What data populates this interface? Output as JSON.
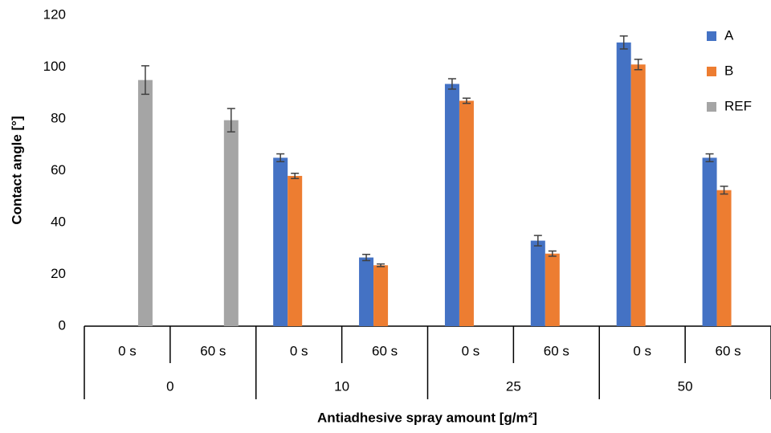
{
  "chart_data": {
    "type": "bar",
    "y_label": "Contact angle [°]",
    "x_label": "Antiadhesive spray amount [g/m²]",
    "categories": [
      "0 s",
      "60 s",
      "0 s",
      "60 s",
      "0 s",
      "60 s",
      "0 s",
      "60 s"
    ],
    "group_labels": [
      "0",
      "10",
      "25",
      "50"
    ],
    "series": [
      {
        "name": "A",
        "color": "#4472c4",
        "values": [
          null,
          null,
          65,
          26.5,
          93.5,
          33,
          109.5,
          65
        ],
        "errors": [
          null,
          null,
          1.5,
          1.2,
          2,
          2,
          2.5,
          1.5
        ]
      },
      {
        "name": "B",
        "color": "#ed7d31",
        "values": [
          null,
          null,
          58,
          23.5,
          87,
          28,
          101,
          52.5
        ],
        "errors": [
          null,
          null,
          1,
          0.5,
          1,
          1,
          2,
          1.5
        ]
      },
      {
        "name": "REF",
        "color": "#a5a5a5",
        "values": [
          95,
          79.5,
          null,
          null,
          null,
          null,
          null,
          null
        ],
        "errors": [
          5.5,
          4.5,
          null,
          null,
          null,
          null,
          null,
          null
        ]
      }
    ],
    "ylim": [
      0,
      120
    ],
    "yticks": [
      0,
      20,
      40,
      60,
      80,
      100,
      120
    ],
    "grid": false,
    "legend": "top-right"
  }
}
